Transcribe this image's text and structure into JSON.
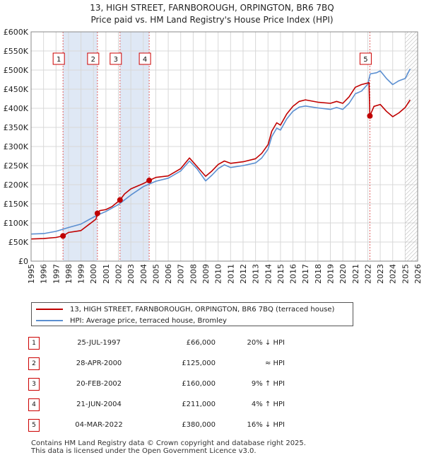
{
  "title_line1": "13, HIGH STREET, FARNBOROUGH, ORPINGTON, BR6 7BQ",
  "title_line2": "Price paid vs. HM Land Registry's House Price Index (HPI)",
  "legend": {
    "property": "13, HIGH STREET, FARNBOROUGH, ORPINGTON, BR6 7BQ (terraced house)",
    "hpi": "HPI: Average price, terraced house, Bromley"
  },
  "colors": {
    "property": "#c00000",
    "hpi": "#5b8fd1",
    "band": "#dfe8f5",
    "marker_border": "#cc0000",
    "grid": "#d8d8d8"
  },
  "sales": [
    {
      "num": "1",
      "date": "25-JUL-1997",
      "price": "£66,000",
      "rel": "20% ↓ HPI"
    },
    {
      "num": "2",
      "date": "28-APR-2000",
      "price": "£125,000",
      "rel": "≈ HPI"
    },
    {
      "num": "3",
      "date": "20-FEB-2002",
      "price": "£160,000",
      "rel": "9% ↑ HPI"
    },
    {
      "num": "4",
      "date": "21-JUN-2004",
      "price": "£211,000",
      "rel": "4% ↑ HPI"
    },
    {
      "num": "5",
      "date": "04-MAR-2022",
      "price": "£380,000",
      "rel": "16% ↓ HPI"
    }
  ],
  "footer": {
    "line1": "Contains HM Land Registry data © Crown copyright and database right 2025.",
    "line2": "This data is licensed under the Open Government Licence v3.0."
  },
  "chart_data": {
    "type": "line",
    "title": "13, HIGH STREET, FARNBOROUGH, ORPINGTON, BR6 7BQ",
    "subtitle": "Price paid vs. HM Land Registry's House Price Index (HPI)",
    "xlabel": "",
    "ylabel": "",
    "xlim": [
      1995,
      2026
    ],
    "ylim": [
      0,
      600000
    ],
    "x_ticks": [
      1995,
      1996,
      1997,
      1998,
      1999,
      2000,
      2001,
      2002,
      2003,
      2004,
      2005,
      2006,
      2007,
      2008,
      2009,
      2010,
      2011,
      2012,
      2013,
      2014,
      2015,
      2016,
      2017,
      2018,
      2019,
      2020,
      2021,
      2022,
      2023,
      2024,
      2025,
      2026
    ],
    "y_ticks": [
      0,
      50000,
      100000,
      150000,
      200000,
      250000,
      300000,
      350000,
      400000,
      450000,
      500000,
      550000,
      600000
    ],
    "y_tick_labels": [
      "£0",
      "£50K",
      "£100K",
      "£150K",
      "£200K",
      "£250K",
      "£300K",
      "£350K",
      "£400K",
      "£450K",
      "£500K",
      "£550K",
      "£600K"
    ],
    "grid": true,
    "future_hatch_from": 2025.0,
    "sale_points": [
      {
        "num": "1",
        "x": 1997.56,
        "y": 66000
      },
      {
        "num": "2",
        "x": 2000.32,
        "y": 125000
      },
      {
        "num": "3",
        "x": 2002.13,
        "y": 160000
      },
      {
        "num": "4",
        "x": 2004.47,
        "y": 211000
      },
      {
        "num": "5",
        "x": 2022.17,
        "y": 380000
      }
    ],
    "series": [
      {
        "name": "13, HIGH STREET, FARNBOROUGH, ORPINGTON, BR6 7BQ (terraced house)",
        "x": [
          1995,
          1996,
          1997,
          1997.56,
          1998,
          1999,
          2000.2,
          2000.32,
          2000.5,
          2001,
          2001.5,
          2002.13,
          2002.5,
          2003,
          2004,
          2004.47,
          2005,
          2006,
          2007,
          2007.7,
          2008.3,
          2009,
          2009.5,
          2010,
          2010.5,
          2011,
          2012,
          2013,
          2013.5,
          2014,
          2014.3,
          2014.7,
          2015,
          2015.5,
          2016,
          2016.5,
          2017,
          2018,
          2019,
          2019.5,
          2020,
          2020.5,
          2021,
          2021.5,
          2022.1,
          2022.17,
          2022.5,
          2023,
          2023.5,
          2024,
          2024.5,
          2025,
          2025.4
        ],
        "values": [
          58000,
          59000,
          62000,
          66000,
          75000,
          80000,
          110000,
          125000,
          132000,
          135000,
          143000,
          160000,
          176000,
          189000,
          203000,
          211000,
          219000,
          223000,
          242000,
          270000,
          248000,
          222000,
          236000,
          253000,
          262000,
          256000,
          260000,
          268000,
          282000,
          305000,
          340000,
          362000,
          356000,
          385000,
          405000,
          418000,
          422000,
          416000,
          413000,
          418000,
          413000,
          430000,
          455000,
          462000,
          467000,
          380000,
          405000,
          410000,
          392000,
          378000,
          388000,
          402000,
          422000
        ]
      },
      {
        "name": "HPI: Average price, terraced house, Bromley",
        "x": [
          1995,
          1996,
          1997,
          1998,
          1999,
          2000,
          2000.5,
          2001,
          2002,
          2003,
          2004,
          2005,
          2006,
          2007,
          2007.7,
          2008.3,
          2009,
          2009.5,
          2010,
          2010.5,
          2011,
          2012,
          2013,
          2013.5,
          2014,
          2014.3,
          2014.7,
          2015,
          2015.5,
          2016,
          2016.5,
          2017,
          2018,
          2019,
          2019.5,
          2020,
          2020.5,
          2021,
          2021.5,
          2022,
          2022.2,
          2022.7,
          2023,
          2023.5,
          2024,
          2024.5,
          2025,
          2025.4
        ],
        "values": [
          71000,
          72000,
          78000,
          88000,
          97000,
          115000,
          123000,
          130000,
          148000,
          173000,
          195000,
          209000,
          217000,
          236000,
          262000,
          242000,
          210000,
          225000,
          242000,
          252000,
          245000,
          250000,
          257000,
          270000,
          293000,
          326000,
          348000,
          343000,
          372000,
          392000,
          403000,
          406000,
          401000,
          397000,
          402000,
          397000,
          413000,
          438000,
          445000,
          463000,
          490000,
          493000,
          498000,
          478000,
          462000,
          472000,
          478000,
          503000
        ]
      }
    ]
  }
}
